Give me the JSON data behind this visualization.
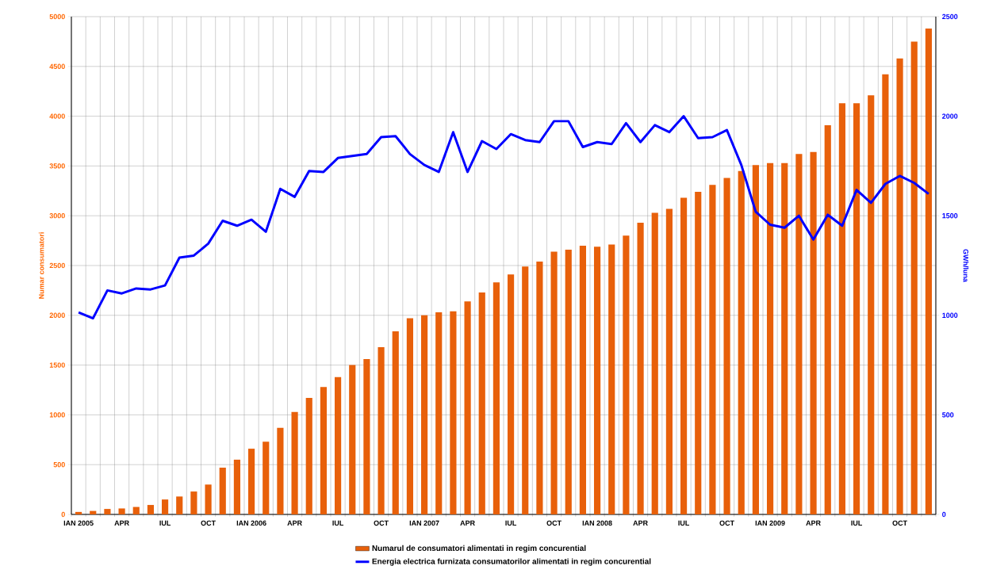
{
  "chart_data": {
    "type": "bar",
    "categories": [
      "IAN 2005",
      null,
      null,
      "APR",
      null,
      null,
      "IUL",
      null,
      null,
      "OCT",
      null,
      null,
      "IAN 2006",
      null,
      null,
      "APR",
      null,
      null,
      "IUL",
      null,
      null,
      "OCT",
      null,
      null,
      "IAN 2007",
      null,
      null,
      "APR",
      null,
      null,
      "IUL",
      null,
      null,
      "OCT",
      null,
      null,
      "IAN 2008",
      null,
      null,
      "APR",
      null,
      null,
      "IUL",
      null,
      null,
      "OCT",
      null,
      null,
      "IAN 2009",
      null,
      null,
      "APR",
      null,
      null,
      "IUL",
      null,
      null,
      "OCT",
      null,
      null
    ],
    "series": [
      {
        "name": "Numarul de consumatori alimentati in regim concurential",
        "color": "#e8600a",
        "values": [
          25,
          35,
          55,
          60,
          75,
          95,
          150,
          180,
          230,
          300,
          470,
          550,
          660,
          730,
          870,
          1030,
          1170,
          1280,
          1380,
          1500,
          1560,
          1680,
          1840,
          1970,
          2000,
          2030,
          2040,
          2140,
          2230,
          2330,
          2410,
          2490,
          2540,
          2640,
          2660,
          2700,
          2690,
          2710,
          2800,
          2930,
          3030,
          3070,
          3180,
          3240,
          3310,
          3380,
          3450,
          3510,
          3530,
          3530,
          3620,
          3640,
          3910,
          4130,
          4130,
          4210,
          4420,
          4580,
          4750,
          4880
        ]
      },
      {
        "name": "Energia electrica furnizata consumatorilor alimentati in regim concurential",
        "type": "line",
        "axis": "y2",
        "color": "#0000ff",
        "values": [
          1015,
          985,
          1125,
          1110,
          1135,
          1130,
          1150,
          1290,
          1300,
          1360,
          1475,
          1450,
          1480,
          1420,
          1635,
          1595,
          1725,
          1720,
          1790,
          1800,
          1810,
          1895,
          1900,
          1810,
          1755,
          1720,
          1920,
          1720,
          1875,
          1835,
          1910,
          1880,
          1870,
          1975,
          1975,
          1845,
          1870,
          1860,
          1965,
          1870,
          1955,
          1920,
          2000,
          1890,
          1895,
          1930,
          1755,
          1520,
          1455,
          1440,
          1500,
          1380,
          1505,
          1450,
          1630,
          1565,
          1660,
          1700,
          1665,
          1610
        ]
      }
    ],
    "ylabel": "Numar consumatori",
    "y2label": "GWh/luna",
    "ylim": [
      0,
      5000
    ],
    "yticks": [
      0,
      500,
      1000,
      1500,
      2000,
      2500,
      3000,
      3500,
      4000,
      4500,
      5000
    ],
    "y2lim": [
      0,
      2500
    ],
    "y2ticks": [
      0,
      500,
      1000,
      1500,
      2000,
      2500
    ],
    "grid": true,
    "legend": "bottom",
    "marker": "none",
    "line_style": "solid"
  }
}
